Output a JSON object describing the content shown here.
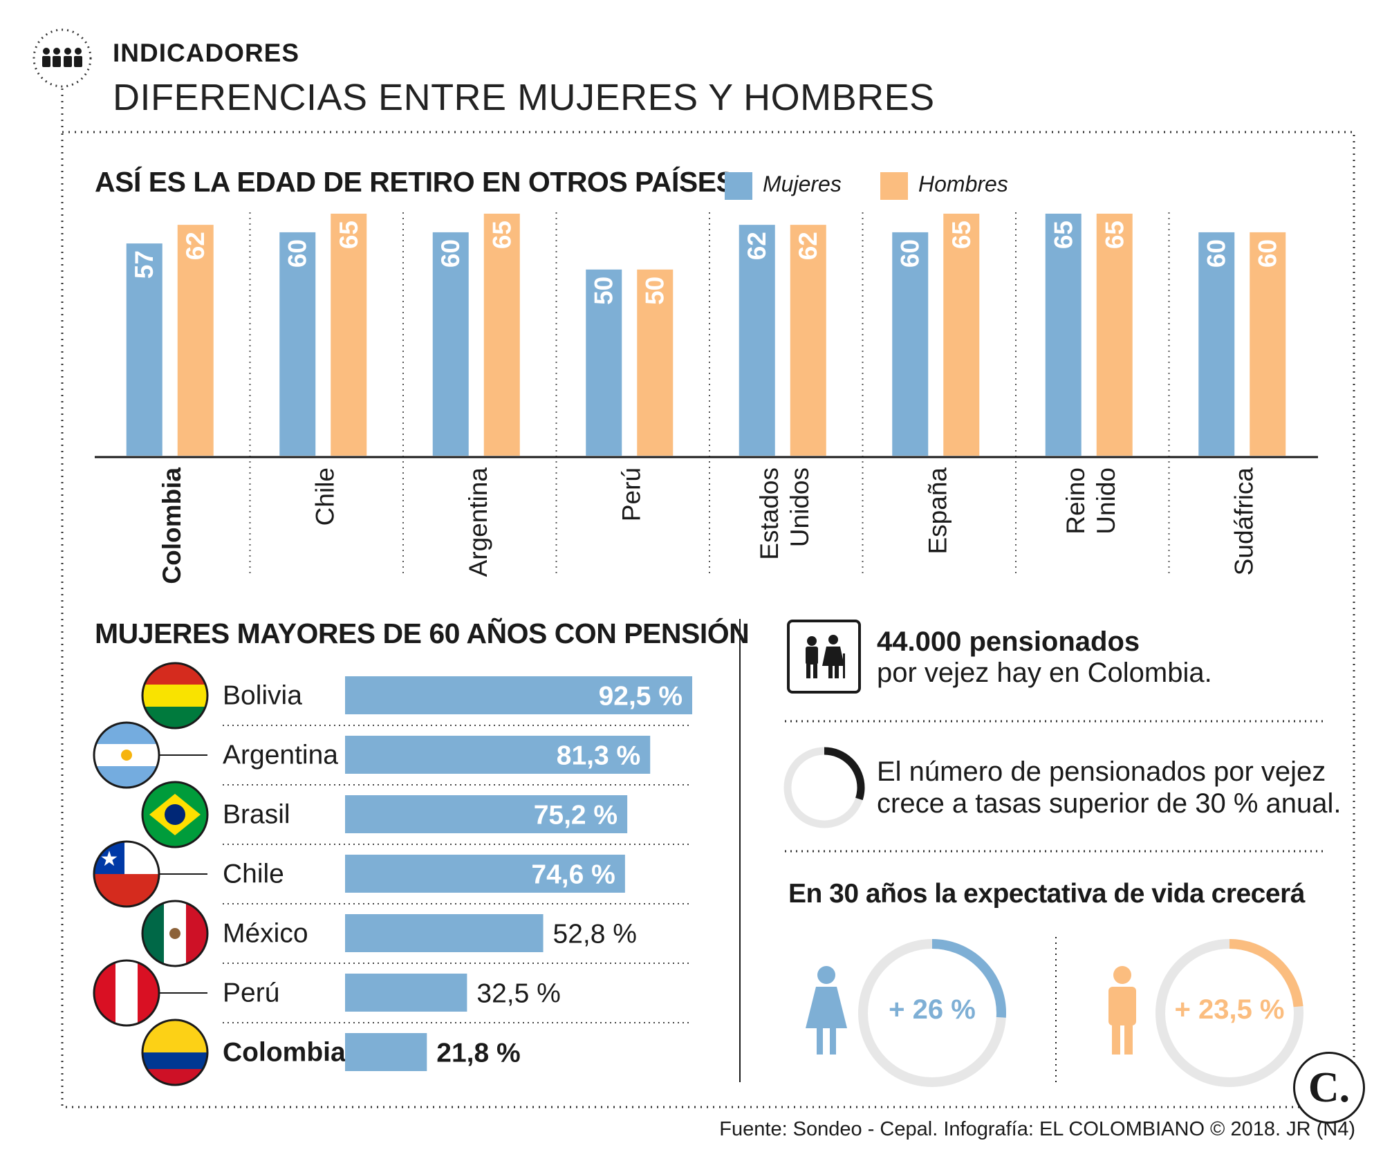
{
  "header": {
    "kicker": "INDICADORES",
    "headline": "DIFERENCIAS ENTRE MUJERES Y HOMBRES",
    "icon": "people-group-icon"
  },
  "colors": {
    "mujeres": "#7eafd5",
    "hombres": "#fbbd7f",
    "dark": "#1a1a1a",
    "ring_bg": "#e7e7e7"
  },
  "chart_data": [
    {
      "type": "bar",
      "title": "ASÍ ES LA EDAD DE RETIRO EN OTROS PAÍSES",
      "legend": [
        "Mujeres",
        "Hombres"
      ],
      "categories": [
        "Colombia",
        "Chile",
        "Argentina",
        "Perú",
        "Estados Unidos",
        "España",
        "Reino Unido",
        "Sudáfrica"
      ],
      "category_lines": [
        [
          "Colombia"
        ],
        [
          "Chile"
        ],
        [
          "Argentina"
        ],
        [
          "Perú"
        ],
        [
          "Estados",
          "Unidos"
        ],
        [
          "España"
        ],
        [
          "Reino",
          "Unido"
        ],
        [
          "Sudáfrica"
        ]
      ],
      "highlight": "Colombia",
      "series": [
        {
          "name": "Mujeres",
          "values": [
            57,
            60,
            60,
            50,
            62,
            60,
            65,
            60
          ]
        },
        {
          "name": "Hombres",
          "values": [
            62,
            65,
            65,
            50,
            62,
            65,
            65,
            60
          ]
        }
      ],
      "xlabel": "",
      "ylabel": "",
      "ylim": [
        0,
        65
      ]
    },
    {
      "type": "bar",
      "orientation": "horizontal",
      "title": "MUJERES MAYORES DE 60 AÑOS CON PENSIÓN",
      "categories": [
        "Bolivia",
        "Argentina",
        "Brasil",
        "Chile",
        "México",
        "Perú",
        "Colombia"
      ],
      "values": [
        92.5,
        81.3,
        75.2,
        74.6,
        52.8,
        32.5,
        21.8
      ],
      "labels": [
        "92,5 %",
        "81,3 %",
        "75,2 %",
        "74,6 %",
        "52,8 %",
        "32,5 %",
        "21,8 %"
      ],
      "highlight": "Colombia",
      "xlim": [
        0,
        92.5
      ]
    }
  ],
  "facts": {
    "pensioners_bold": "44.000 pensionados",
    "pensioners_rest": "por vejez hay en Colombia.",
    "growth_line1": "El número de pensionados por vejez",
    "growth_line2": "crece a tasas superior de 30 % anual.",
    "growth_ring_fraction": 0.3
  },
  "life": {
    "title": "En 30 años la expectativa de vida crecerá",
    "women": {
      "label": "+ 26 %",
      "fraction": 0.26
    },
    "men": {
      "label": "+ 23,5 %",
      "fraction": 0.235
    }
  },
  "logo": "C.",
  "source": "Fuente: Sondeo - Cepal. Infografía: EL COLOMBIANO © 2018. JR (N4)"
}
